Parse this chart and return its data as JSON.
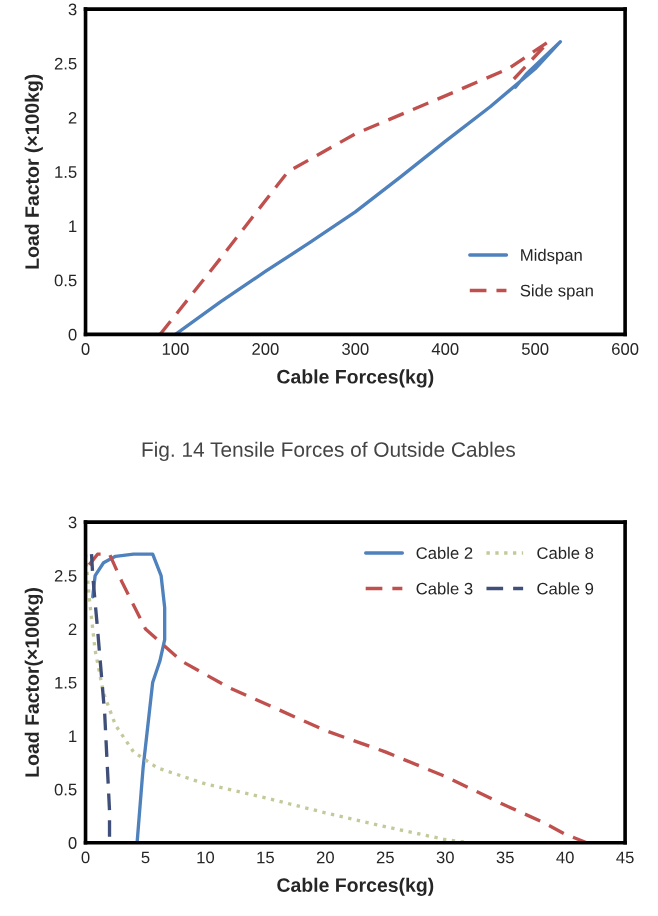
{
  "chart_data": [
    {
      "type": "line",
      "xlabel": "Cable Forces(kg)",
      "ylabel": "Load Factor (×100kg)",
      "annotations": [
        "Fig. 14 Tensile Forces of Outside Cables"
      ],
      "xlim": [
        0,
        600
      ],
      "xticks": [
        0,
        100,
        200,
        300,
        400,
        500,
        600
      ],
      "ylim": [
        0,
        3
      ],
      "yticks": [
        0,
        0.5,
        1,
        1.5,
        2,
        2.5,
        3
      ],
      "grid": false,
      "legend": "bottom right",
      "marker": "none",
      "series": [
        {
          "name": "Midspan",
          "color": "#4f81bd",
          "line_style": "solid",
          "x": [
            100,
            150,
            200,
            250,
            300,
            350,
            400,
            450,
            500,
            528,
            490,
            478
          ],
          "values": [
            0,
            0.3,
            0.58,
            0.85,
            1.13,
            1.45,
            1.78,
            2.1,
            2.45,
            2.7,
            2.4,
            2.28
          ]
        },
        {
          "name": "Side span",
          "color": "#c0504d",
          "line_style": "dashed",
          "x": [
            83,
            150,
            225,
            300,
            400,
            470,
            515,
            470
          ],
          "values": [
            0,
            0.7,
            1.5,
            1.85,
            2.2,
            2.45,
            2.7,
            2.3
          ]
        }
      ]
    },
    {
      "type": "line",
      "xlabel": "Cable Forces(kg)",
      "ylabel": "Load Factor(×100kg)",
      "xlim": [
        0,
        45
      ],
      "xticks": [
        0,
        5,
        10,
        15,
        20,
        25,
        30,
        35,
        40,
        45
      ],
      "ylim": [
        0,
        3
      ],
      "yticks": [
        0,
        0.5,
        1,
        1.5,
        2,
        2.5,
        3
      ],
      "grid": false,
      "legend": "top right",
      "marker": "none",
      "series": [
        {
          "name": "Cable 2",
          "color": "#4f81bd",
          "line_style": "solid",
          "x": [
            4.3,
            4.8,
            5.3,
            5.6,
            6.2,
            6.6,
            6.6,
            6.3,
            5.6,
            4,
            2.5,
            1.5,
            0.8,
            0.6
          ],
          "values": [
            0,
            0.7,
            1.2,
            1.5,
            1.7,
            1.9,
            2.2,
            2.5,
            2.7,
            2.7,
            2.68,
            2.62,
            2.5,
            2.3
          ]
        },
        {
          "name": "Cable 3",
          "color": "#c0504d",
          "line_style": "dashed",
          "x": [
            0.3,
            1,
            2,
            3,
            5,
            8,
            12,
            16,
            20,
            25,
            30,
            35,
            38,
            40,
            41.8
          ],
          "values": [
            2.6,
            2.7,
            2.7,
            2.45,
            2.0,
            1.7,
            1.45,
            1.25,
            1.05,
            0.85,
            0.62,
            0.35,
            0.2,
            0.08,
            0
          ]
        },
        {
          "name": "Cable 8",
          "color": "#c4c99a",
          "line_style": "dotted",
          "x": [
            0,
            0.3,
            0.8,
            1.5,
            2.5,
            4,
            6,
            10,
            15,
            20,
            25,
            30,
            32
          ],
          "values": [
            2.7,
            2.3,
            1.8,
            1.4,
            1.1,
            0.85,
            0.7,
            0.55,
            0.42,
            0.28,
            0.15,
            0.03,
            0
          ]
        },
        {
          "name": "Cable 9",
          "color": "#3f4f7a",
          "line_style": "dashed",
          "x": [
            0.5,
            0.6,
            1,
            1.6,
            2,
            2
          ],
          "values": [
            2.7,
            2.5,
            2.0,
            1.2,
            0.3,
            0
          ]
        }
      ]
    }
  ]
}
